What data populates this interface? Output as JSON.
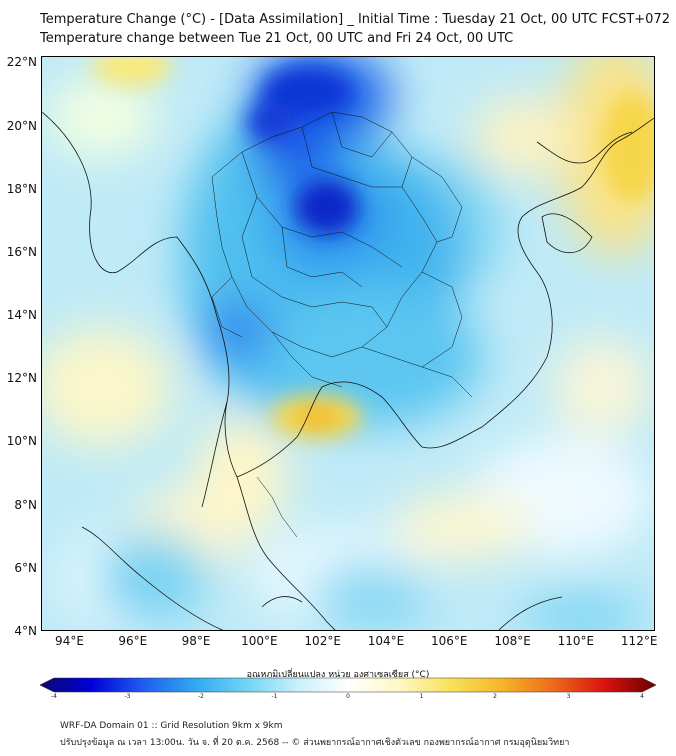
{
  "title": {
    "line1": "Temperature Change (°C) - [Data Assimilation] _ Initial Time : Tuesday 21 Oct, 00 UTC FCST+072",
    "line2": "Temperature change between Tue 21 Oct, 00 UTC and Fri 24 Oct, 00 UTC"
  },
  "axes": {
    "lat_labels": [
      "22°N",
      "20°N",
      "18°N",
      "16°N",
      "14°N",
      "12°N",
      "10°N",
      "8°N",
      "6°N",
      "4°N"
    ],
    "lon_labels": [
      "94°E",
      "96°E",
      "98°E",
      "100°E",
      "102°E",
      "104°E",
      "106°E",
      "108°E",
      "110°E",
      "112°E"
    ],
    "lat_range": [
      4,
      22.2
    ],
    "lon_range": [
      93.1,
      112.5
    ]
  },
  "colorbar": {
    "label": "อุณหภูมิเปลี่ยนแปลง หน่วย องศาเซลเซียส (°C)",
    "ticks": [
      "-4",
      "-3",
      "-2",
      "-1",
      "0",
      "1",
      "2",
      "3",
      "4"
    ],
    "range": [
      -4,
      4
    ],
    "colors": [
      "#0a0a6e",
      "#0000d8",
      "#1f5cf0",
      "#2fa8f0",
      "#6fd3f5",
      "#c8effa",
      "#ffffff",
      "#fff7c4",
      "#f7e25a",
      "#f5b52a",
      "#ee6a1a",
      "#d9120f",
      "#6b0000"
    ]
  },
  "footer": {
    "line1": "WRF-DA Domain 01 :: Grid Resolution 9km x 9km",
    "line2": "ปรับปรุงข้อมูล ณ เวลา 13:00น. วัน จ. ที่ 20 ต.ค. 2568 -- © ส่วนพยากรณ์อากาศเชิงตัวเลข กองพยากรณ์อากาศ กรมอุตุนิยมวิทยา"
  },
  "field_features": [
    {
      "name": "cooling-core-laos",
      "lon": 102.0,
      "lat": 17.3,
      "value": -3.0
    },
    {
      "name": "cooling-north-myanmar",
      "lon": 101.2,
      "lat": 21.4,
      "value": -2.6
    },
    {
      "name": "cooling-upper-thailand",
      "lon": 100.8,
      "lat": 19.8,
      "value": -2.2
    },
    {
      "name": "cooling-west-thailand",
      "lon": 99.2,
      "lat": 13.8,
      "value": -2.0
    },
    {
      "name": "warming-gulf-of-thailand",
      "lon": 102.0,
      "lat": 10.7,
      "value": 1.3
    },
    {
      "name": "warming-hainan",
      "lon": 111.5,
      "lat": 19.0,
      "value": 1.2
    },
    {
      "name": "warming-northwest",
      "lon": 96.3,
      "lat": 21.7,
      "value": 0.8
    },
    {
      "name": "warming-andaman",
      "lon": 95.0,
      "lat": 12.0,
      "value": 0.7
    },
    {
      "name": "warming-south-china-sea",
      "lon": 110.5,
      "lat": 10.5,
      "value": 0.6
    },
    {
      "name": "cooling-malay",
      "lon": 97.8,
      "lat": 5.8,
      "value": -1.3
    },
    {
      "name": "cooling-central-sea",
      "lon": 104.5,
      "lat": 6.0,
      "value": -1.0
    }
  ]
}
